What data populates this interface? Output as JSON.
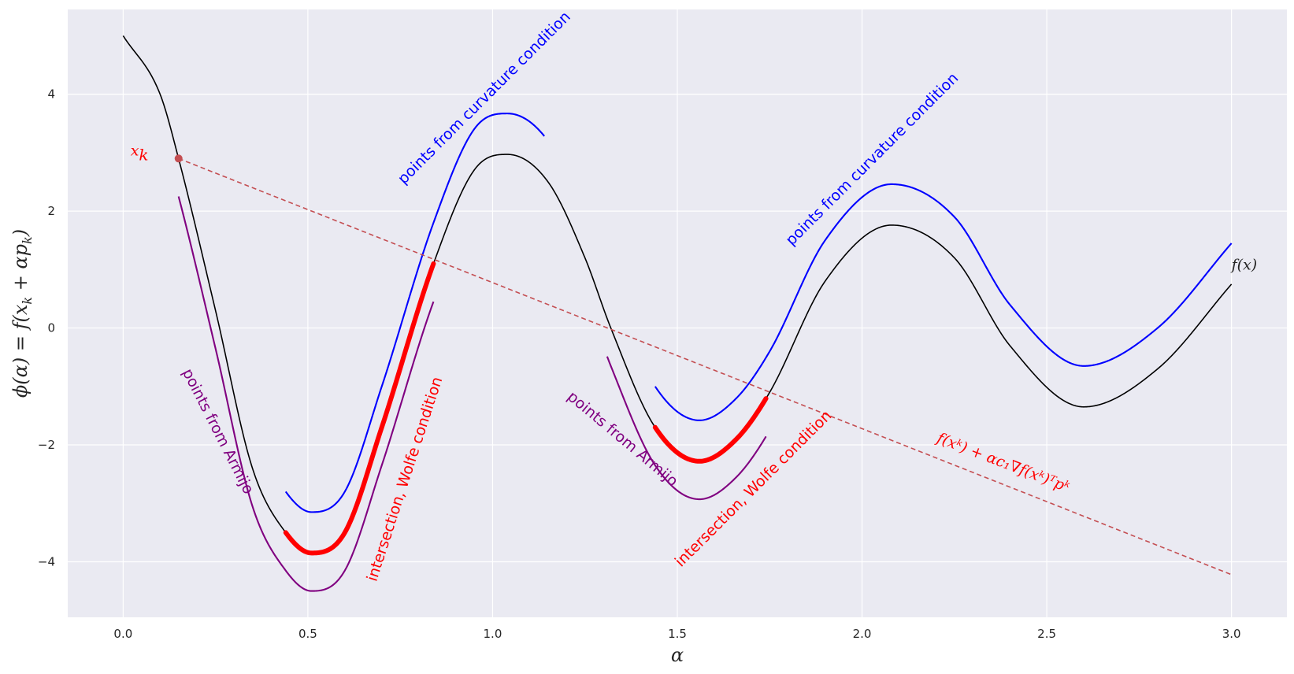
{
  "chart_data": {
    "type": "line",
    "xlabel": "α",
    "ylabel": "ϕ(α) = f(x_k + αp_k)",
    "xlim": [
      -0.15,
      3.15
    ],
    "ylim": [
      -4.95,
      5.45
    ],
    "xticks": [
      0.0,
      0.5,
      1.0,
      1.5,
      2.0,
      2.5,
      3.0
    ],
    "xtick_labels": [
      "0.0",
      "0.5",
      "1.0",
      "1.5",
      "2.0",
      "2.5",
      "3.0"
    ],
    "yticks": [
      -4,
      -2,
      0,
      2,
      4
    ],
    "ytick_labels": [
      "−4",
      "−2",
      "0",
      "2",
      "4"
    ],
    "grid": true,
    "function": {
      "name": "f(x)",
      "label": "f(x)",
      "color": "#000000",
      "domain": [
        0,
        3
      ],
      "control_points": [
        [
          0.0,
          5.0
        ],
        [
          0.1,
          4.0
        ],
        [
          0.15,
          2.9
        ],
        [
          0.25,
          0.3
        ],
        [
          0.35,
          -2.4
        ],
        [
          0.44,
          -3.5
        ],
        [
          0.51,
          -3.85
        ],
        [
          0.6,
          -3.5
        ],
        [
          0.7,
          -1.7
        ],
        [
          0.84,
          1.1
        ],
        [
          0.95,
          2.7
        ],
        [
          1.04,
          2.97
        ],
        [
          1.15,
          2.5
        ],
        [
          1.25,
          1.2
        ],
        [
          1.32,
          0.0
        ],
        [
          1.44,
          -1.7
        ],
        [
          1.56,
          -2.28
        ],
        [
          1.66,
          -1.9
        ],
        [
          1.75,
          -1.1
        ],
        [
          1.9,
          0.8
        ],
        [
          2.08,
          1.76
        ],
        [
          2.25,
          1.2
        ],
        [
          2.4,
          -0.3
        ],
        [
          2.6,
          -1.35
        ],
        [
          2.8,
          -0.7
        ],
        [
          3.0,
          0.75
        ]
      ]
    },
    "curvature_segments": [
      {
        "color": "#0000ff",
        "x_range": [
          0.44,
          1.14
        ],
        "offset": 0.7
      },
      {
        "color": "#0000ff",
        "x_range": [
          1.44,
          3.0
        ],
        "offset": 0.7
      }
    ],
    "armijo_segments": [
      {
        "color": "#800080",
        "x_range": [
          0.15,
          0.84
        ],
        "offset": -0.65
      },
      {
        "color": "#800080",
        "x_range": [
          1.31,
          1.74
        ],
        "offset": -0.65
      }
    ],
    "wolfe_segments": [
      {
        "color": "#ff0000",
        "x_range": [
          0.44,
          0.84
        ]
      },
      {
        "color": "#ff0000",
        "x_range": [
          1.44,
          1.74
        ]
      }
    ],
    "armijo_line": {
      "color": "#c44e52",
      "x": [
        0.15,
        3.0
      ],
      "y": [
        2.9,
        -4.22
      ]
    },
    "start_point": {
      "x": 0.15,
      "y": 2.9,
      "label": "x_k",
      "color": "#c44e52"
    },
    "annotations": [
      {
        "text": "points from curvature condition",
        "color": "#0000ff",
        "x": 0.76,
        "y": 2.45,
        "rotation": -45
      },
      {
        "text": "points from curvature condition",
        "color": "#0000ff",
        "x": 1.81,
        "y": 1.4,
        "rotation": -45
      },
      {
        "text": "points from Armijo",
        "color": "#800080",
        "x": 0.16,
        "y": -0.75,
        "rotation": 63
      },
      {
        "text": "points from Armijo",
        "color": "#800080",
        "x": 1.2,
        "y": -1.2,
        "rotation": 40
      },
      {
        "text": "intersection, Wolfe condition",
        "color": "#ff0000",
        "x": 0.685,
        "y": -4.35,
        "rotation": -72
      },
      {
        "text": "intersection, Wolfe condition",
        "color": "#ff0000",
        "x": 1.51,
        "y": -4.1,
        "rotation": -45
      },
      {
        "text": "f(xᵏ) + αc₁∇f(xᵏ)ᵀpᵏ",
        "color": "#ff0000",
        "x": 2.2,
        "y": -1.95,
        "rotation": 21
      },
      {
        "text": "x_k",
        "color": "#ff0000",
        "x": 0.02,
        "y": 2.95,
        "rotation": 0
      },
      {
        "text": "f(x)",
        "color": "#262626",
        "x": 3.0,
        "y": 1.0,
        "rotation": 0
      }
    ]
  }
}
